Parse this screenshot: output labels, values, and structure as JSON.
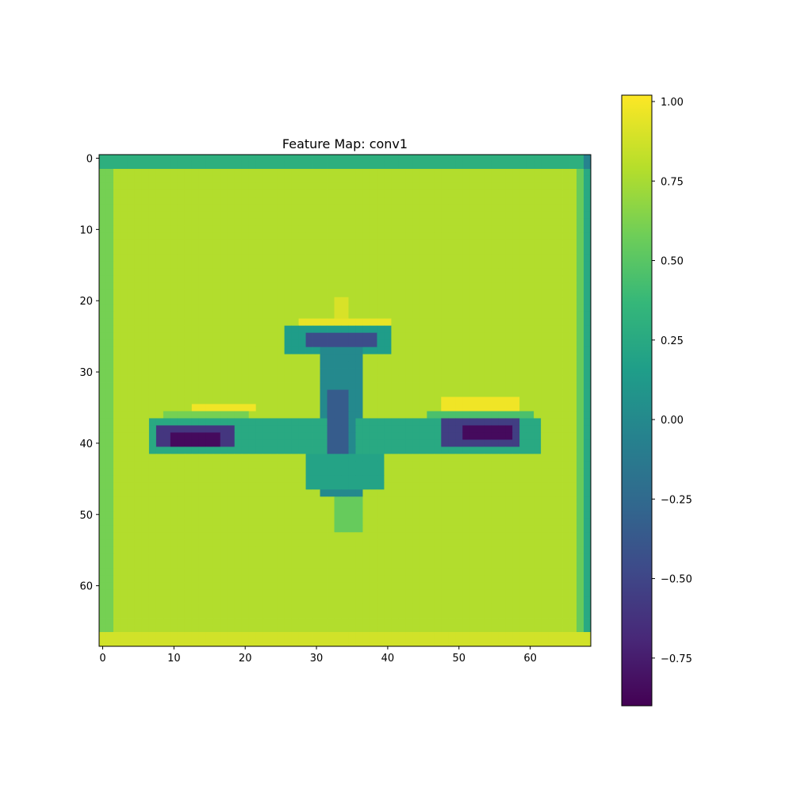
{
  "chart_data": {
    "type": "heatmap",
    "title": "Feature Map: conv1",
    "grid_size": 69,
    "x_ticks": [
      "0",
      "10",
      "20",
      "30",
      "40",
      "50",
      "60"
    ],
    "y_ticks": [
      "0",
      "10",
      "20",
      "30",
      "40",
      "50",
      "60"
    ],
    "xlim": [
      -0.5,
      68.5
    ],
    "ylim": [
      68.5,
      -0.5
    ],
    "colormap": "viridis",
    "value_range": [
      -0.9,
      1.02
    ],
    "background_value": 0.78,
    "colorbar": {
      "ticks": [
        "1.00",
        "0.75",
        "0.50",
        "0.25",
        "0.00",
        "−0.25",
        "−0.50",
        "−0.75"
      ],
      "tick_values": [
        1.0,
        0.75,
        0.5,
        0.25,
        0.0,
        -0.25,
        -0.5,
        -0.75
      ]
    },
    "border": {
      "top_rows": [
        0,
        1
      ],
      "top_value": 0.3,
      "bottom_rows": [
        67,
        68
      ],
      "bottom_value": 0.88,
      "left_cols": [
        0,
        1
      ],
      "left_value": 0.6,
      "right_col_inner": 67,
      "right_inner_value": 0.55,
      "right_col_outer": 68,
      "right_outer_value": 0.25,
      "corner_value": -0.05
    },
    "regions": [
      {
        "name": "tail-top-spike",
        "rows": [
          20,
          22
        ],
        "cols": [
          33,
          34
        ],
        "value": 0.9
      },
      {
        "name": "tail-stabilizer-highlight",
        "rows": [
          23,
          23
        ],
        "cols": [
          28,
          40
        ],
        "value": 0.95
      },
      {
        "name": "tail-stabilizer",
        "rows": [
          24,
          27
        ],
        "cols": [
          26,
          40
        ],
        "value": 0.15
      },
      {
        "name": "tail-stabilizer-dark",
        "rows": [
          25,
          26
        ],
        "cols": [
          29,
          38
        ],
        "value": -0.45
      },
      {
        "name": "fuselage",
        "rows": [
          27,
          47
        ],
        "cols": [
          31,
          36
        ],
        "value": 0.0
      },
      {
        "name": "fuselage-dark-core",
        "rows": [
          33,
          46
        ],
        "cols": [
          32,
          34
        ],
        "value": -0.35
      },
      {
        "name": "nose",
        "rows": [
          48,
          52
        ],
        "cols": [
          33,
          36
        ],
        "value": 0.55
      },
      {
        "name": "wing-left-highlight",
        "rows": [
          35,
          35
        ],
        "cols": [
          13,
          21
        ],
        "value": 0.98
      },
      {
        "name": "wing-left-edge",
        "rows": [
          36,
          36
        ],
        "cols": [
          9,
          20
        ],
        "value": 0.6
      },
      {
        "name": "wing-left",
        "rows": [
          37,
          41
        ],
        "cols": [
          7,
          31
        ],
        "value": 0.25
      },
      {
        "name": "wing-left-dark",
        "rows": [
          38,
          40
        ],
        "cols": [
          8,
          18
        ],
        "value": -0.6
      },
      {
        "name": "wing-left-darkest",
        "rows": [
          39,
          40
        ],
        "cols": [
          10,
          16
        ],
        "value": -0.85
      },
      {
        "name": "wing-right-highlight",
        "rows": [
          34,
          35
        ],
        "cols": [
          48,
          58
        ],
        "value": 0.98
      },
      {
        "name": "wing-right-edge",
        "rows": [
          36,
          36
        ],
        "cols": [
          46,
          60
        ],
        "value": 0.45
      },
      {
        "name": "wing-right",
        "rows": [
          37,
          41
        ],
        "cols": [
          36,
          61
        ],
        "value": 0.25
      },
      {
        "name": "wing-right-dark",
        "rows": [
          37,
          40
        ],
        "cols": [
          48,
          58
        ],
        "value": -0.55
      },
      {
        "name": "wing-right-darkest",
        "rows": [
          38,
          39
        ],
        "cols": [
          51,
          57
        ],
        "value": -0.85
      },
      {
        "name": "wing-root-lower",
        "rows": [
          42,
          46
        ],
        "cols": [
          29,
          39
        ],
        "value": 0.2
      }
    ]
  }
}
